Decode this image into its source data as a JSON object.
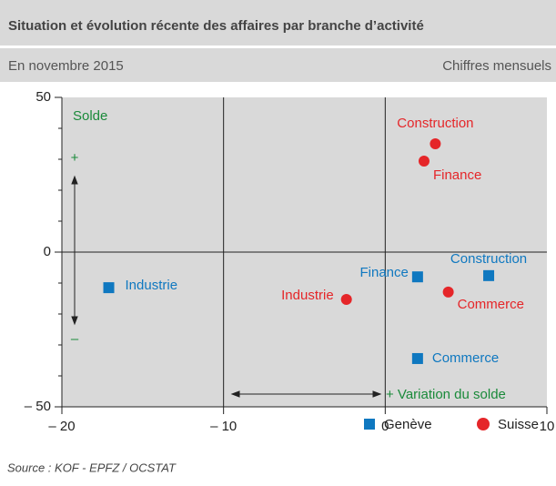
{
  "chart_data": {
    "type": "scatter",
    "title": "Situation et évolution récente des affaires par branche d’activité",
    "subtitle": "En novembre 2015",
    "note": "Chiffres mensuels",
    "source": "Source : KOF - EPFZ / OCSTAT",
    "annotations": {
      "y_label": "Solde",
      "plus": "+",
      "minus": "–",
      "x_label": "+ Variation du solde"
    },
    "xlim": [
      -20,
      10
    ],
    "ylim": [
      -50,
      50
    ],
    "xticks": [
      {
        "value": -20,
        "label": "– 20"
      },
      {
        "value": -10,
        "label": "– 10"
      },
      0,
      10
    ],
    "yticks": [
      {
        "value": -50,
        "label": "– 50"
      },
      0,
      50
    ],
    "yminorticks": [
      -40,
      -30,
      -20,
      -10,
      10,
      20,
      30,
      40
    ],
    "series": [
      {
        "name": "Genève",
        "color": "#0f78c0",
        "marker": "square",
        "labels": [
          "Industrie",
          "Finance",
          "Construction",
          "Commerce"
        ],
        "x": [
          -17.1,
          2.0,
          6.4,
          2.0
        ],
        "values": [
          -11.5,
          -8,
          -7.6,
          -34.4
        ]
      },
      {
        "name": "Suisse",
        "color": "#e52629",
        "marker": "circle",
        "labels": [
          "Construction",
          "Finance",
          "Industrie",
          "Commerce"
        ],
        "x": [
          3.1,
          2.4,
          -2.4,
          3.9
        ],
        "values": [
          35,
          29.4,
          -15.3,
          -12.9
        ]
      }
    ]
  }
}
